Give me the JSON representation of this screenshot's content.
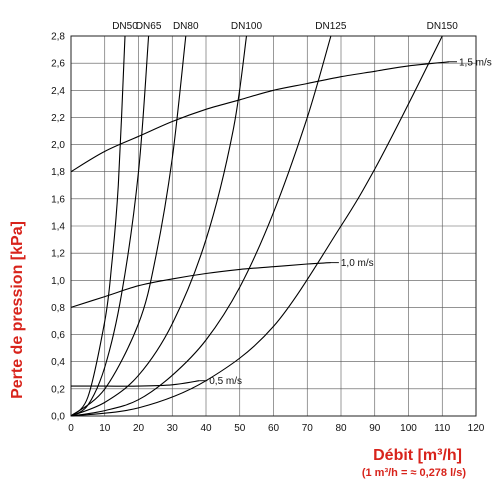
{
  "chart_data": {
    "type": "line",
    "ylabel": "Perte de pression [kPa]",
    "xlabel": "Débit [m³/h]",
    "xlabel_note": "(1 m³/h = ≈ 0,278 l/s)",
    "xlim": [
      0,
      120
    ],
    "ylim": [
      0,
      2.8
    ],
    "x_ticks": [
      0,
      10,
      20,
      30,
      40,
      50,
      60,
      70,
      80,
      90,
      100,
      110,
      120
    ],
    "y_ticks": [
      0,
      0.2,
      0.4,
      0.6,
      0.8,
      1.0,
      1.2,
      1.4,
      1.6,
      1.8,
      2.0,
      2.2,
      2.4,
      2.6,
      2.8
    ],
    "y_tick_labels": [
      "0,0",
      "0,2",
      "0,4",
      "0,6",
      "0,8",
      "1,0",
      "1,2",
      "1,4",
      "1,6",
      "1,8",
      "2,0",
      "2,2",
      "2,4",
      "2,6",
      "2,8"
    ],
    "grid": true,
    "pipe_series": [
      {
        "name": "DN50",
        "color": "#000000",
        "points": [
          [
            0,
            0
          ],
          [
            5,
            0.14
          ],
          [
            10,
            0.7
          ],
          [
            12,
            1.1
          ],
          [
            14,
            1.7
          ],
          [
            16,
            2.8
          ]
        ]
      },
      {
        "name": "DN65",
        "color": "#000000",
        "points": [
          [
            0,
            0
          ],
          [
            5,
            0.08
          ],
          [
            10,
            0.36
          ],
          [
            15,
            0.9
          ],
          [
            20,
            1.8
          ],
          [
            23,
            2.8
          ]
        ]
      },
      {
        "name": "DN80",
        "color": "#000000",
        "points": [
          [
            0,
            0
          ],
          [
            10,
            0.2
          ],
          [
            20,
            0.68
          ],
          [
            25,
            1.16
          ],
          [
            30,
            1.9
          ],
          [
            34,
            2.8
          ]
        ]
      },
      {
        "name": "DN100",
        "color": "#000000",
        "points": [
          [
            0,
            0
          ],
          [
            10,
            0.1
          ],
          [
            20,
            0.3
          ],
          [
            30,
            0.68
          ],
          [
            40,
            1.3
          ],
          [
            48,
            2.1
          ],
          [
            52,
            2.8
          ]
        ]
      },
      {
        "name": "DN125",
        "color": "#000000",
        "points": [
          [
            0,
            0
          ],
          [
            10,
            0.04
          ],
          [
            20,
            0.12
          ],
          [
            30,
            0.3
          ],
          [
            40,
            0.56
          ],
          [
            50,
            0.95
          ],
          [
            60,
            1.5
          ],
          [
            70,
            2.2
          ],
          [
            77,
            2.8
          ]
        ]
      },
      {
        "name": "DN150",
        "color": "#000000",
        "points": [
          [
            0,
            0
          ],
          [
            20,
            0.06
          ],
          [
            40,
            0.26
          ],
          [
            60,
            0.66
          ],
          [
            80,
            1.4
          ],
          [
            90,
            1.82
          ],
          [
            100,
            2.3
          ],
          [
            110,
            2.8
          ]
        ]
      }
    ],
    "velocity_series": [
      {
        "name": "1,5 m/s",
        "color": "#000000",
        "points": [
          [
            0,
            1.8
          ],
          [
            10,
            1.95
          ],
          [
            20,
            2.06
          ],
          [
            30,
            2.17
          ],
          [
            40,
            2.26
          ],
          [
            50,
            2.33
          ],
          [
            60,
            2.4
          ],
          [
            70,
            2.45
          ],
          [
            80,
            2.5
          ],
          [
            90,
            2.54
          ],
          [
            100,
            2.58
          ],
          [
            112,
            2.61
          ]
        ]
      },
      {
        "name": "1,0 m/s",
        "color": "#000000",
        "points": [
          [
            0,
            0.8
          ],
          [
            10,
            0.88
          ],
          [
            20,
            0.96
          ],
          [
            30,
            1.01
          ],
          [
            40,
            1.05
          ],
          [
            50,
            1.08
          ],
          [
            60,
            1.1
          ],
          [
            70,
            1.12
          ],
          [
            77,
            1.13
          ]
        ]
      },
      {
        "name": "0,5 m/s",
        "color": "#000000",
        "points": [
          [
            0,
            0.22
          ],
          [
            10,
            0.22
          ],
          [
            20,
            0.22
          ],
          [
            30,
            0.23
          ],
          [
            38,
            0.26
          ]
        ]
      }
    ]
  }
}
